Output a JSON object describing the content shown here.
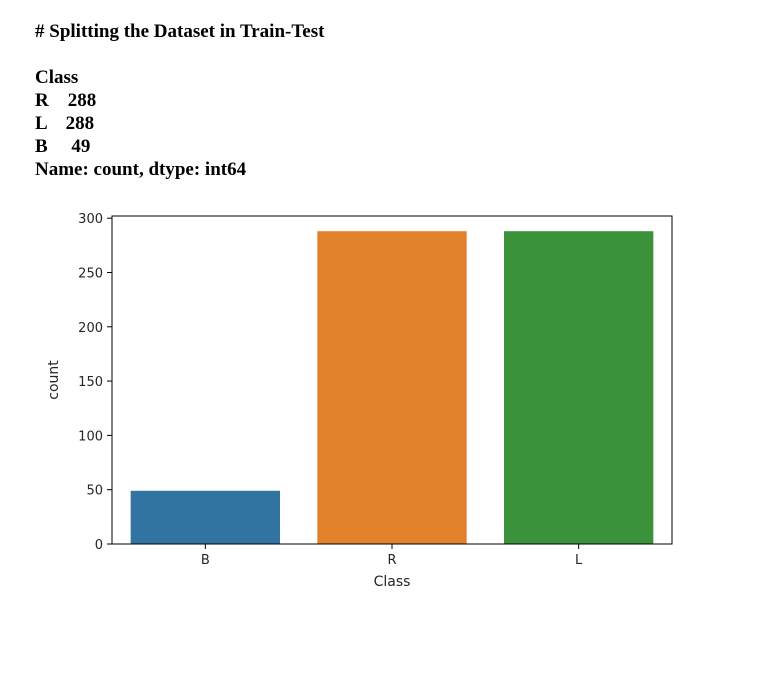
{
  "output_text": {
    "heading": "# Splitting the Dataset in Train-Test",
    "lines": [
      "Class",
      "R    288",
      "L    288",
      "B     49",
      "Name: count, dtype: int64"
    ]
  },
  "chart_data": {
    "type": "bar",
    "categories": [
      "B",
      "R",
      "L"
    ],
    "values": [
      49,
      288,
      288
    ],
    "colors": [
      "#3274a1",
      "#e1812c",
      "#3a923a"
    ],
    "title": "",
    "xlabel": "Class",
    "ylabel": "count",
    "ylim": [
      0,
      302
    ],
    "yticks": [
      0,
      50,
      100,
      150,
      200,
      250,
      300
    ],
    "grid": false,
    "legend": "none"
  }
}
